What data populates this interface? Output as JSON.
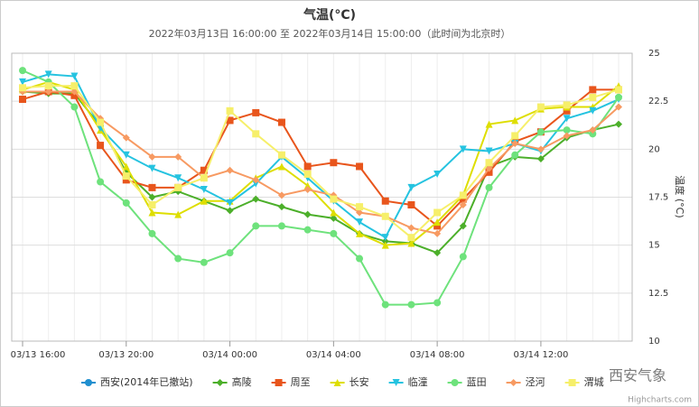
{
  "chart_data": {
    "type": "line",
    "title": "气温(°C)",
    "subtitle": "2022年03月13日 16:00:00 至 2022年03月14日 15:00:00（此时间为北京时）",
    "y_label": "温度 (°C)",
    "credits": "Highcharts.com",
    "watermark": "西安气象",
    "categories": [
      "03/13 16:00",
      null,
      null,
      null,
      "03/13 20:00",
      null,
      null,
      null,
      "03/14 00:00",
      null,
      null,
      null,
      "03/14 04:00",
      null,
      null,
      null,
      "03/14 08:00",
      null,
      null,
      null,
      "03/14 12:00",
      null,
      null,
      null
    ],
    "ylim": [
      10,
      25
    ],
    "yticks": [
      10,
      12.5,
      15,
      17.5,
      20,
      22.5,
      25
    ],
    "grid": true,
    "series": [
      {
        "name": "西安(2014年已撤站)",
        "color": "#1f8fcf",
        "marker": "circle",
        "values": [
          null,
          null,
          null,
          null,
          null,
          null,
          null,
          null,
          null,
          null,
          null,
          null,
          null,
          null,
          null,
          null,
          null,
          null,
          null,
          null,
          null,
          null,
          null,
          null
        ]
      },
      {
        "name": "高陵",
        "color": "#4caf2a",
        "marker": "diamond",
        "values": [
          23.0,
          22.9,
          22.9,
          21.2,
          18.8,
          17.5,
          17.8,
          17.3,
          16.8,
          17.4,
          17.0,
          16.6,
          16.4,
          15.6,
          15.2,
          15.1,
          14.6,
          16.0,
          19.1,
          19.6,
          19.5,
          20.6,
          21.0,
          21.3
        ]
      },
      {
        "name": "周至",
        "color": "#e8551c",
        "marker": "square",
        "values": [
          22.6,
          23.0,
          22.8,
          20.2,
          18.4,
          18.0,
          18.0,
          18.9,
          21.5,
          21.9,
          21.4,
          19.1,
          19.3,
          19.1,
          17.3,
          17.1,
          16.0,
          17.4,
          18.8,
          20.4,
          20.9,
          22.0,
          23.1,
          23.1
        ]
      },
      {
        "name": "长安",
        "color": "#dede00",
        "marker": "triangle",
        "values": [
          23.1,
          23.5,
          23.1,
          21.0,
          19.1,
          16.7,
          16.6,
          17.3,
          17.3,
          18.5,
          19.1,
          18.1,
          16.7,
          15.6,
          15.0,
          15.1,
          16.2,
          17.6,
          21.3,
          21.5,
          22.1,
          22.2,
          22.2,
          23.3
        ]
      },
      {
        "name": "临潼",
        "color": "#25c3e0",
        "marker": "triangle-down",
        "values": [
          23.5,
          23.9,
          23.8,
          21.1,
          19.7,
          19.0,
          18.5,
          17.9,
          17.2,
          18.2,
          19.6,
          18.5,
          17.3,
          16.2,
          15.4,
          18.0,
          18.7,
          20.0,
          19.9,
          20.3,
          19.9,
          21.6,
          22.0,
          22.6
        ]
      },
      {
        "name": "蓝田",
        "color": "#6ee27c",
        "marker": "circle",
        "values": [
          24.1,
          23.5,
          22.2,
          18.3,
          17.2,
          15.6,
          14.3,
          14.1,
          14.6,
          16.0,
          16.0,
          15.8,
          15.6,
          14.3,
          11.9,
          11.9,
          12.0,
          14.4,
          18.0,
          19.7,
          20.9,
          21.0,
          20.8,
          22.7
        ]
      },
      {
        "name": "泾河",
        "color": "#f79a62",
        "marker": "diamond",
        "values": [
          23.0,
          23.0,
          23.0,
          21.6,
          20.6,
          19.6,
          19.6,
          18.5,
          18.9,
          18.4,
          17.6,
          17.9,
          17.6,
          16.7,
          16.5,
          15.9,
          15.6,
          17.1,
          19.0,
          20.3,
          20.0,
          20.7,
          21.0,
          22.2
        ]
      },
      {
        "name": "渭城",
        "color": "#f6ef6a",
        "marker": "square",
        "values": [
          23.2,
          23.3,
          23.3,
          21.4,
          18.6,
          17.1,
          18.0,
          18.5,
          22.0,
          20.8,
          19.7,
          18.7,
          17.4,
          17.0,
          16.5,
          15.4,
          16.7,
          17.6,
          19.3,
          20.7,
          22.2,
          22.3,
          22.7,
          23.1
        ]
      }
    ]
  }
}
